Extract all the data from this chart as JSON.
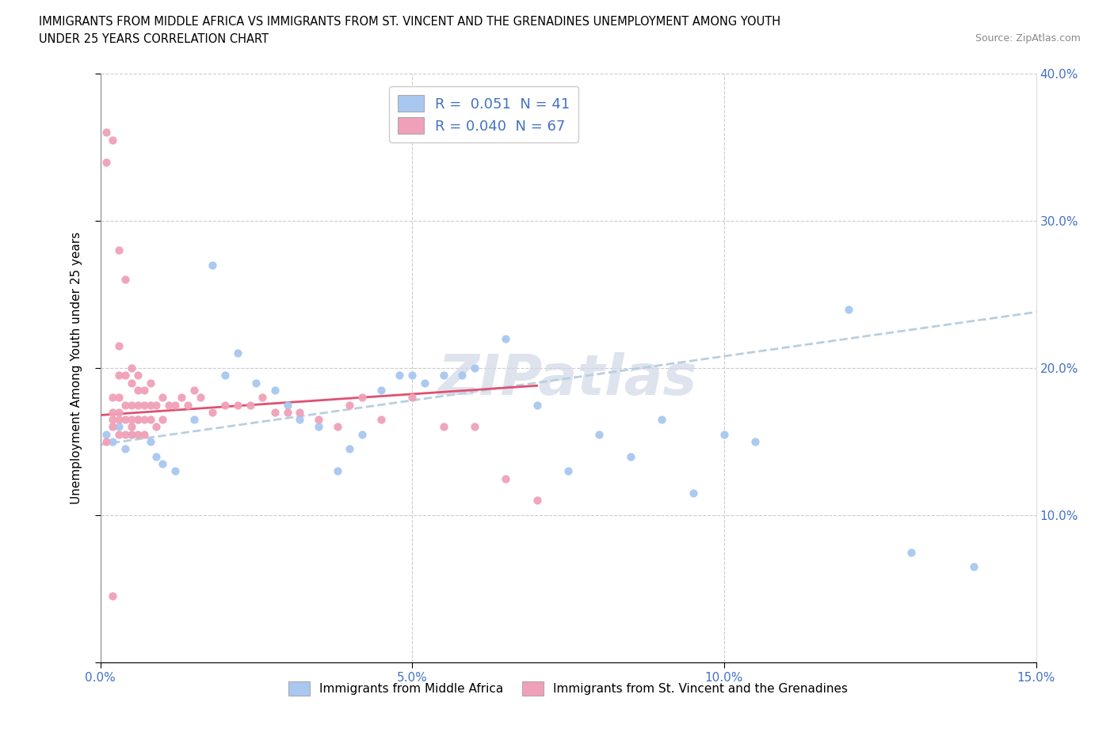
{
  "title_line1": "IMMIGRANTS FROM MIDDLE AFRICA VS IMMIGRANTS FROM ST. VINCENT AND THE GRENADINES UNEMPLOYMENT AMONG YOUTH",
  "title_line2": "UNDER 25 YEARS CORRELATION CHART",
  "source_text": "Source: ZipAtlas.com",
  "ylabel": "Unemployment Among Youth under 25 years",
  "xlim": [
    0,
    0.15
  ],
  "ylim": [
    0,
    0.4
  ],
  "blue_color": "#a8c8f0",
  "pink_color": "#f0a0b8",
  "blue_line_color": "#b0c8e0",
  "pink_line_color": "#e05070",
  "R_blue": 0.051,
  "N_blue": 41,
  "R_pink": 0.04,
  "N_pink": 67,
  "legend_label_blue": "Immigrants from Middle Africa",
  "legend_label_pink": "Immigrants from St. Vincent and the Grenadines",
  "watermark": "ZIPatlas",
  "blue_x": [
    0.001,
    0.002,
    0.003,
    0.004,
    0.005,
    0.006,
    0.008,
    0.009,
    0.01,
    0.012,
    0.015,
    0.018,
    0.02,
    0.022,
    0.025,
    0.028,
    0.03,
    0.032,
    0.035,
    0.038,
    0.04,
    0.042,
    0.045,
    0.048,
    0.05,
    0.052,
    0.055,
    0.058,
    0.06,
    0.065,
    0.07,
    0.075,
    0.08,
    0.085,
    0.09,
    0.095,
    0.1,
    0.105,
    0.12,
    0.13,
    0.14
  ],
  "blue_y": [
    0.155,
    0.15,
    0.16,
    0.145,
    0.155,
    0.165,
    0.15,
    0.14,
    0.135,
    0.13,
    0.165,
    0.27,
    0.195,
    0.21,
    0.19,
    0.185,
    0.175,
    0.165,
    0.16,
    0.13,
    0.145,
    0.155,
    0.185,
    0.195,
    0.195,
    0.19,
    0.195,
    0.195,
    0.2,
    0.22,
    0.175,
    0.13,
    0.155,
    0.14,
    0.165,
    0.115,
    0.155,
    0.15,
    0.24,
    0.075,
    0.065
  ],
  "pink_x": [
    0.001,
    0.001,
    0.001,
    0.002,
    0.002,
    0.002,
    0.002,
    0.002,
    0.003,
    0.003,
    0.003,
    0.003,
    0.003,
    0.003,
    0.003,
    0.004,
    0.004,
    0.004,
    0.004,
    0.004,
    0.005,
    0.005,
    0.005,
    0.005,
    0.005,
    0.005,
    0.006,
    0.006,
    0.006,
    0.006,
    0.006,
    0.007,
    0.007,
    0.007,
    0.007,
    0.008,
    0.008,
    0.008,
    0.009,
    0.009,
    0.01,
    0.01,
    0.011,
    0.012,
    0.013,
    0.014,
    0.015,
    0.016,
    0.018,
    0.02,
    0.022,
    0.024,
    0.026,
    0.028,
    0.03,
    0.032,
    0.035,
    0.038,
    0.04,
    0.042,
    0.045,
    0.05,
    0.055,
    0.06,
    0.065,
    0.07,
    0.002
  ],
  "pink_y": [
    0.36,
    0.34,
    0.15,
    0.355,
    0.18,
    0.17,
    0.165,
    0.16,
    0.28,
    0.215,
    0.195,
    0.18,
    0.17,
    0.165,
    0.155,
    0.26,
    0.195,
    0.175,
    0.165,
    0.155,
    0.2,
    0.19,
    0.175,
    0.165,
    0.16,
    0.155,
    0.195,
    0.185,
    0.175,
    0.165,
    0.155,
    0.185,
    0.175,
    0.165,
    0.155,
    0.19,
    0.175,
    0.165,
    0.175,
    0.16,
    0.18,
    0.165,
    0.175,
    0.175,
    0.18,
    0.175,
    0.185,
    0.18,
    0.17,
    0.175,
    0.175,
    0.175,
    0.18,
    0.17,
    0.17,
    0.17,
    0.165,
    0.16,
    0.175,
    0.18,
    0.165,
    0.18,
    0.16,
    0.16,
    0.125,
    0.11,
    0.045
  ],
  "blue_trend_x": [
    0.0,
    0.15
  ],
  "blue_trend_y": [
    0.148,
    0.238
  ],
  "pink_trend_x": [
    0.0,
    0.07
  ],
  "pink_trend_y": [
    0.168,
    0.188
  ]
}
